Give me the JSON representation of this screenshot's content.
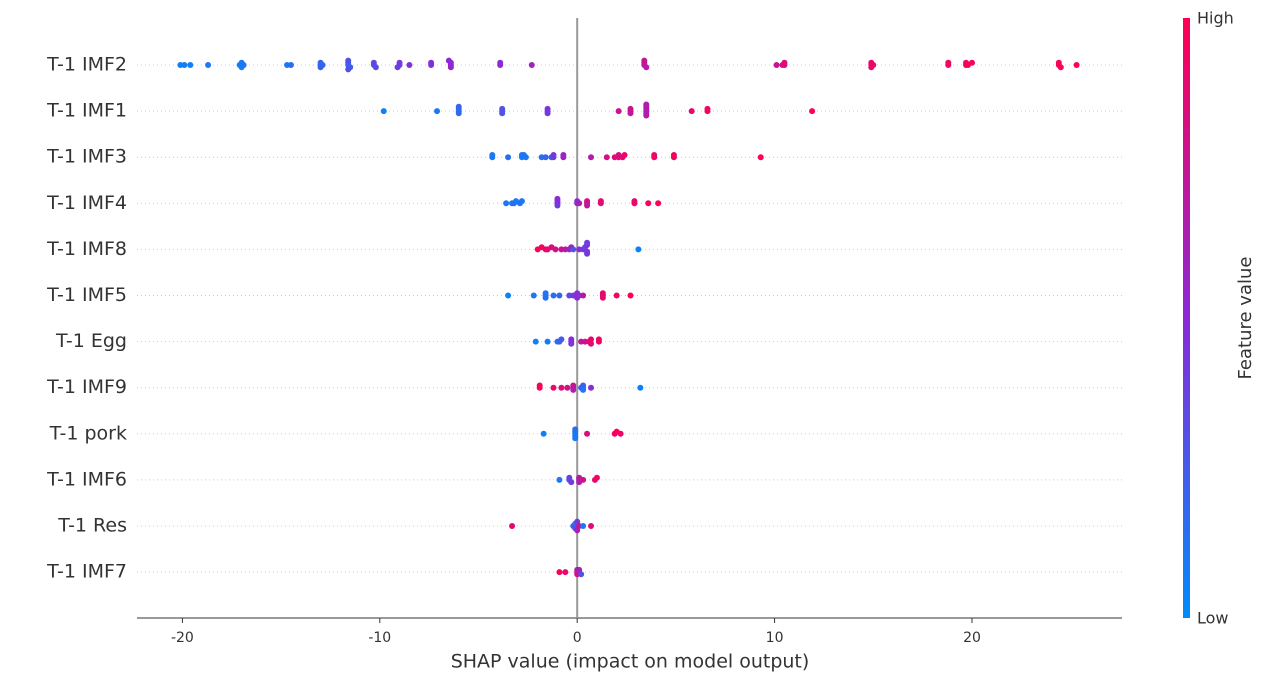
{
  "chart_data": {
    "type": "beeswarm",
    "x_label": "SHAP value (impact on model output)",
    "colorbar_label": "Feature value",
    "colorbar_high": "High",
    "colorbar_low": "Low",
    "colormap": [
      "#008bfb",
      "#8b2ad6",
      "#ff0052"
    ],
    "xlim": [
      -22.3,
      27.6
    ],
    "xticks": [
      -20,
      -10,
      0,
      10,
      20
    ],
    "vline": 0,
    "categories": [
      "T-1 IMF2",
      "T-1 IMF1",
      "T-1 IMF3",
      "T-1 IMF4",
      "T-1 IMF8",
      "T-1 IMF5",
      "T-1 Egg",
      "T-1 IMF9",
      "T-1 pork",
      "T-1 IMF6",
      "T-1 Res",
      "T-1 IMF7"
    ],
    "points": [
      [
        [
          -20.1,
          0.05
        ],
        [
          -19.9,
          0.08
        ],
        [
          -19.6,
          0.05
        ],
        [
          -18.7,
          0.1
        ],
        [
          -17.1,
          0.08
        ],
        [
          -17,
          0.1
        ],
        [
          -17,
          0.06
        ],
        [
          -16.9,
          0.12
        ],
        [
          -14.7,
          0.1
        ],
        [
          -14.5,
          0.15
        ],
        [
          -13,
          0.15
        ],
        [
          -13,
          0.2
        ],
        [
          -12.9,
          0.18
        ],
        [
          -13,
          0.22
        ],
        [
          -11.6,
          0.2
        ],
        [
          -11.6,
          0.25
        ],
        [
          -11.5,
          0.22
        ],
        [
          -11.6,
          0.28
        ],
        [
          -11.6,
          0.3
        ],
        [
          -10.3,
          0.3
        ],
        [
          -10.3,
          0.35
        ],
        [
          -10.2,
          0.33
        ],
        [
          -9,
          0.4
        ],
        [
          -9,
          0.42
        ],
        [
          -9.1,
          0.38
        ],
        [
          -8.5,
          0.45
        ],
        [
          -7.4,
          0.45
        ],
        [
          -7.4,
          0.48
        ],
        [
          -6.4,
          0.5
        ],
        [
          -6.4,
          0.52
        ],
        [
          -6.4,
          0.55
        ],
        [
          -6.5,
          0.5
        ],
        [
          -3.9,
          0.55
        ],
        [
          -3.9,
          0.5
        ],
        [
          -2.3,
          0.6
        ],
        [
          3.4,
          0.7
        ],
        [
          3.4,
          0.72
        ],
        [
          3.5,
          0.68
        ],
        [
          3.4,
          0.75
        ],
        [
          10.1,
          0.75
        ],
        [
          10.4,
          0.85
        ],
        [
          10.5,
          0.82
        ],
        [
          10.5,
          0.88
        ],
        [
          14.9,
          0.88
        ],
        [
          14.9,
          0.9
        ],
        [
          14.9,
          0.92
        ],
        [
          15,
          0.9
        ],
        [
          18.8,
          0.92
        ],
        [
          18.8,
          0.95
        ],
        [
          19.7,
          0.95
        ],
        [
          19.7,
          0.97
        ],
        [
          19.8,
          0.98
        ],
        [
          20,
          0.96
        ],
        [
          24.4,
          0.98
        ],
        [
          24.4,
          1
        ],
        [
          24.5,
          0.97
        ],
        [
          25.3,
          1
        ]
      ],
      [
        [
          -9.8,
          0.05
        ],
        [
          -7.1,
          0.1
        ],
        [
          -6,
          0.15
        ],
        [
          -6,
          0.12
        ],
        [
          -6,
          0.18
        ],
        [
          -6,
          0.2
        ],
        [
          -3.8,
          0.25
        ],
        [
          -3.8,
          0.3
        ],
        [
          -3.8,
          0.28
        ],
        [
          -1.5,
          0.4
        ],
        [
          -1.5,
          0.45
        ],
        [
          -1.5,
          0.42
        ],
        [
          2.1,
          0.75
        ],
        [
          2.7,
          0.7
        ],
        [
          2.7,
          0.78
        ],
        [
          2.7,
          0.72
        ],
        [
          3.5,
          0.6
        ],
        [
          3.5,
          0.65
        ],
        [
          3.5,
          0.62
        ],
        [
          3.5,
          0.7
        ],
        [
          3.5,
          0.68
        ],
        [
          3.5,
          0.66
        ],
        [
          5.8,
          0.9
        ],
        [
          6.6,
          0.92
        ],
        [
          6.6,
          0.95
        ],
        [
          11.9,
          1
        ]
      ],
      [
        [
          -4.3,
          0.1
        ],
        [
          -4.3,
          0.12
        ],
        [
          -3.5,
          0.15
        ],
        [
          -2.8,
          0.05
        ],
        [
          -2.8,
          0.08
        ],
        [
          -2.6,
          0.1
        ],
        [
          -2.7,
          0.12
        ],
        [
          -1.8,
          0.15
        ],
        [
          -1.6,
          0.2
        ],
        [
          -1.3,
          0.25
        ],
        [
          -1.2,
          0.35
        ],
        [
          -1.2,
          0.45
        ],
        [
          -0.7,
          0.6
        ],
        [
          -0.7,
          0.55
        ],
        [
          0.7,
          0.65
        ],
        [
          1.5,
          0.8
        ],
        [
          1.9,
          0.85
        ],
        [
          2.1,
          0.9
        ],
        [
          2.3,
          0.88
        ],
        [
          2.4,
          0.92
        ],
        [
          2.1,
          0.82
        ],
        [
          3.9,
          0.95
        ],
        [
          3.9,
          0.9
        ],
        [
          4.9,
          0.92
        ],
        [
          4.9,
          0.95
        ],
        [
          9.3,
          1
        ]
      ],
      [
        [
          -3.6,
          0.1
        ],
        [
          -3.3,
          0.12
        ],
        [
          -3.2,
          0.15
        ],
        [
          -3.1,
          0.08
        ],
        [
          -2.9,
          0.12
        ],
        [
          -2.8,
          0.1
        ],
        [
          -1,
          0.4
        ],
        [
          -1,
          0.45
        ],
        [
          -1,
          0.42
        ],
        [
          -1,
          0.5
        ],
        [
          0,
          0.55
        ],
        [
          0,
          0.5
        ],
        [
          0.1,
          0.6
        ],
        [
          0.5,
          0.75
        ],
        [
          0.5,
          0.8
        ],
        [
          0.5,
          0.72
        ],
        [
          1.2,
          0.85
        ],
        [
          1.2,
          0.88
        ],
        [
          2.9,
          0.95
        ],
        [
          2.9,
          0.9
        ],
        [
          3.6,
          0.95
        ],
        [
          4.1,
          1
        ]
      ],
      [
        [
          -2,
          1
        ],
        [
          -1.8,
          0.95
        ],
        [
          -1.6,
          0.9
        ],
        [
          -1.5,
          0.92
        ],
        [
          -1.3,
          0.85
        ],
        [
          -1.1,
          0.8
        ],
        [
          -0.8,
          0.75
        ],
        [
          -0.6,
          0.7
        ],
        [
          -0.4,
          0.6
        ],
        [
          -0.3,
          0.55
        ],
        [
          -0.2,
          0.3
        ],
        [
          0.1,
          0.5
        ],
        [
          0.3,
          0.4
        ],
        [
          0.4,
          0.35
        ],
        [
          0.5,
          0.45
        ],
        [
          0.5,
          0.5
        ],
        [
          0.5,
          0.42
        ],
        [
          0.5,
          0.38
        ],
        [
          3.1,
          0.05
        ]
      ],
      [
        [
          -3.5,
          0.05
        ],
        [
          -2.2,
          0.1
        ],
        [
          -1.6,
          0.1
        ],
        [
          -1.6,
          0.12
        ],
        [
          -1.6,
          0.15
        ],
        [
          -1.2,
          0.15
        ],
        [
          -0.9,
          0.2
        ],
        [
          -0.4,
          0.35
        ],
        [
          -0.2,
          0.4
        ],
        [
          0,
          0.5
        ],
        [
          0,
          0.55
        ],
        [
          0.1,
          0.45
        ],
        [
          0.3,
          0.7
        ],
        [
          1.3,
          0.85
        ],
        [
          1.3,
          0.9
        ],
        [
          1.3,
          0.88
        ],
        [
          2,
          0.92
        ],
        [
          2.7,
          1
        ]
      ],
      [
        [
          -2.1,
          0.05
        ],
        [
          -1.5,
          0.08
        ],
        [
          -1,
          0.15
        ],
        [
          -0.9,
          0.2
        ],
        [
          -0.8,
          0.25
        ],
        [
          -0.3,
          0.45
        ],
        [
          -0.3,
          0.5
        ],
        [
          -0.3,
          0.42
        ],
        [
          0.2,
          0.7
        ],
        [
          0.4,
          0.8
        ],
        [
          0.6,
          0.85
        ],
        [
          0.7,
          0.9
        ],
        [
          0.7,
          0.88
        ],
        [
          1.1,
          0.95
        ],
        [
          1.1,
          0.92
        ]
      ],
      [
        [
          -1.9,
          1
        ],
        [
          -1.9,
          0.95
        ],
        [
          -1.2,
          0.9
        ],
        [
          -0.8,
          0.85
        ],
        [
          -0.5,
          0.8
        ],
        [
          -0.2,
          0.7
        ],
        [
          -0.2,
          0.75
        ],
        [
          -0.2,
          0.65
        ],
        [
          0.2,
          0.3
        ],
        [
          0.3,
          0.15
        ],
        [
          0.3,
          0.2
        ],
        [
          0.3,
          0.1
        ],
        [
          0.7,
          0.5
        ],
        [
          3.2,
          0.05
        ]
      ],
      [
        [
          -1.7,
          0.05
        ],
        [
          -0.1,
          0.1
        ],
        [
          -0.1,
          0.08
        ],
        [
          -0.1,
          0.12
        ],
        [
          -0.1,
          0.15
        ],
        [
          -0.1,
          0.1
        ],
        [
          0.5,
          0.85
        ],
        [
          1.9,
          0.95
        ],
        [
          2,
          0.98
        ],
        [
          2.2,
          0.92
        ]
      ],
      [
        [
          -0.9,
          0.1
        ],
        [
          -0.4,
          0.3
        ],
        [
          -0.4,
          0.35
        ],
        [
          -0.3,
          0.4
        ],
        [
          0.1,
          0.6
        ],
        [
          0.1,
          0.7
        ],
        [
          0.1,
          0.65
        ],
        [
          0.3,
          0.8
        ],
        [
          0.9,
          0.9
        ],
        [
          1,
          0.95
        ]
      ],
      [
        [
          -3.3,
          0.9
        ],
        [
          -0.2,
          0.2
        ],
        [
          -0.1,
          0.15
        ],
        [
          -0.1,
          0.3
        ],
        [
          0,
          0.4
        ],
        [
          0,
          0.6
        ],
        [
          0.1,
          0.8
        ],
        [
          0.3,
          0.1
        ],
        [
          0.7,
          0.85
        ]
      ],
      [
        [
          -0.9,
          0.95
        ],
        [
          -0.6,
          0.9
        ],
        [
          0,
          0.7
        ],
        [
          0,
          0.75
        ],
        [
          0,
          0.8
        ],
        [
          0.1,
          0.85
        ],
        [
          0.1,
          0.6
        ],
        [
          0.2,
          0.3
        ]
      ]
    ]
  }
}
